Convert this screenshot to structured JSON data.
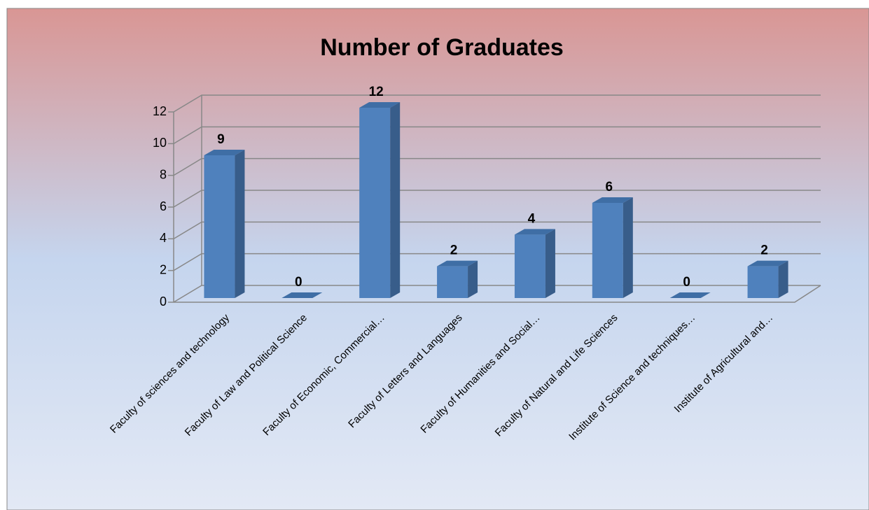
{
  "chart_data": {
    "type": "bar3d",
    "title": "Number of Graduates",
    "categories": [
      "Faculty of sciences and technology",
      "Faculty of Law and Political Science",
      "Faculty of Economic, Commercial…",
      "Faculty of Letters and Languages",
      "Faculty of Humanities and Social…",
      "Faculty of Natural and Life Sciences",
      "Institute of Science and techniques…",
      "Institute of Agricultural and…"
    ],
    "values": [
      9,
      0,
      12,
      2,
      4,
      6,
      0,
      2
    ],
    "color": "#4f81bd",
    "ylim": [
      0,
      12
    ],
    "yticks": [
      0,
      2,
      4,
      6,
      8,
      10,
      12
    ],
    "grid": true
  }
}
